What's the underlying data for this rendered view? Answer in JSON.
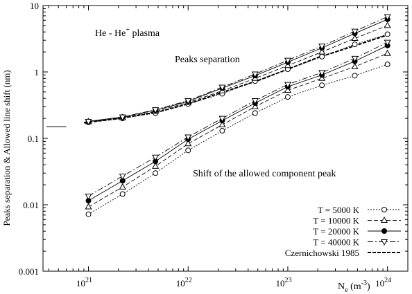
{
  "chart_data": {
    "type": "line",
    "x_scale": "log",
    "y_scale": "log",
    "xlim": [
      3.5e+20,
      1.6e+24
    ],
    "ylim": [
      0.001,
      10
    ],
    "xlabel": "N",
    "xlabel_sub": "e",
    "xlabel_unit_pre": " (m",
    "xlabel_unit_sup": "-3",
    "xlabel_unit_post": ")",
    "ylabel": "Peaks separation & Allowed line shift  (nm)",
    "x_ticks": [
      {
        "value": 1e+21,
        "base": "10",
        "exp": "21"
      },
      {
        "value": 1e+22,
        "base": "10",
        "exp": "22"
      },
      {
        "value": 1e+23,
        "base": "10",
        "exp": "23"
      },
      {
        "value": 1e+24,
        "base": "10",
        "exp": "24"
      }
    ],
    "y_ticks": [
      {
        "value": 0.001,
        "label": "0.001"
      },
      {
        "value": 0.01,
        "label": "0.01"
      },
      {
        "value": 0.1,
        "label": "0.1"
      },
      {
        "value": 1,
        "label": "1"
      },
      {
        "value": 10,
        "label": "10"
      }
    ],
    "annotations": {
      "title_main": "He - He",
      "title_sup": "+",
      "title_post": " plasma",
      "peaks_label": "Peaks separation",
      "shift_label": "Shift of the allowed component peak"
    },
    "legend_placement": "bottom-right",
    "x": [
      1e+21,
      2.2e+21,
      4.7e+21,
      1e+22,
      2.2e+22,
      4.7e+22,
      1e+23,
      2.2e+23,
      4.7e+23,
      1e+24
    ],
    "series": [
      {
        "name": "T =  5000 K",
        "group": "peaks",
        "marker": "circle-open",
        "dash": "2,2",
        "values": [
          0.175,
          0.2,
          0.24,
          0.33,
          0.47,
          0.73,
          1.1,
          1.7,
          2.6,
          3.7
        ]
      },
      {
        "name": "T = 10000 K",
        "group": "peaks",
        "marker": "triangle-up-open",
        "dash": "6,3",
        "values": [
          0.178,
          0.205,
          0.255,
          0.345,
          0.52,
          0.8,
          1.25,
          2.0,
          3.2,
          5.0
        ]
      },
      {
        "name": "T = 20000 K",
        "group": "peaks",
        "marker": "circle-filled",
        "dash": "",
        "values": [
          0.18,
          0.21,
          0.265,
          0.36,
          0.57,
          0.88,
          1.4,
          2.3,
          3.8,
          6.2
        ]
      },
      {
        "name": "T = 40000 K",
        "group": "peaks",
        "marker": "triangle-down-open",
        "dash": "8,3,2,3",
        "values": [
          0.18,
          0.21,
          0.27,
          0.37,
          0.59,
          0.93,
          1.5,
          2.45,
          4.1,
          6.8
        ]
      },
      {
        "name": "T =  5000 K",
        "group": "shift",
        "marker": "circle-open",
        "dash": "2,2",
        "values": [
          0.0072,
          0.0145,
          0.03,
          0.066,
          0.13,
          0.24,
          0.42,
          0.63,
          0.88,
          1.3
        ]
      },
      {
        "name": "T = 10000 K",
        "group": "shift",
        "marker": "triangle-up-open",
        "dash": "6,3",
        "values": [
          0.0093,
          0.0185,
          0.038,
          0.083,
          0.16,
          0.3,
          0.53,
          0.8,
          1.2,
          1.9
        ]
      },
      {
        "name": "T = 20000 K",
        "group": "shift",
        "marker": "circle-filled",
        "dash": "",
        "values": [
          0.0115,
          0.023,
          0.045,
          0.097,
          0.185,
          0.34,
          0.6,
          0.9,
          1.45,
          2.5
        ]
      },
      {
        "name": "T = 40000 K",
        "group": "shift",
        "marker": "triangle-down-open",
        "dash": "8,3,2,3",
        "values": [
          0.0135,
          0.027,
          0.052,
          0.105,
          0.2,
          0.37,
          0.65,
          0.98,
          1.6,
          2.8
        ]
      },
      {
        "name": "Czernichowski 1985",
        "group": "reference",
        "marker": "none",
        "dash": "5,2",
        "x": [
          9e+20,
          2e+21,
          5e+21,
          1e+22,
          2e+22,
          5e+22,
          1e+23,
          2e+23,
          5e+23,
          1e+24
        ],
        "values": [
          0.172,
          0.198,
          0.25,
          0.33,
          0.47,
          0.74,
          1.1,
          1.65,
          2.55,
          3.6
        ]
      }
    ],
    "reference_segment": {
      "x": [
        3.8e+20,
        6e+20
      ],
      "y": 0.15
    },
    "legend": [
      {
        "label": "T =  5000 K",
        "marker": "circle-open",
        "dash": "2,2"
      },
      {
        "label": "T = 10000 K",
        "marker": "triangle-up-open",
        "dash": "6,3"
      },
      {
        "label": "T = 20000 K",
        "marker": "circle-filled",
        "dash": ""
      },
      {
        "label": "T = 40000 K",
        "marker": "triangle-down-open",
        "dash": "8,3,2,3"
      },
      {
        "label": "Czernichowski 1985",
        "marker": "none",
        "dash": "5,2"
      }
    ]
  }
}
